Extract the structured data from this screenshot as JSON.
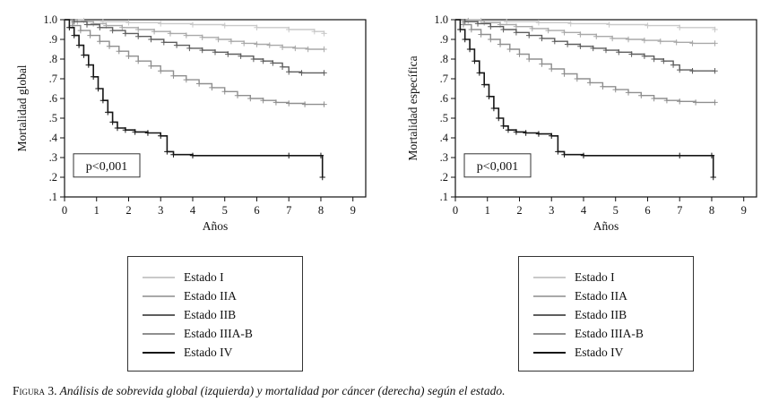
{
  "figure": {
    "caption_label": "Figura 3.",
    "caption_text": " Análisis de sobrevida global (izquierda) y mortalidad por cáncer (derecha) según el estado."
  },
  "legend": {
    "items": [
      {
        "label": "Estado I",
        "color": "#c9c9c9"
      },
      {
        "label": "Estado IIA",
        "color": "#a9a9a9"
      },
      {
        "label": "Estado IIB",
        "color": "#5e5e5e"
      },
      {
        "label": "Estado IIIA-B",
        "color": "#8f8f8f"
      },
      {
        "label": "Estado IV",
        "color": "#161616"
      }
    ]
  },
  "chart_data": [
    {
      "type": "line",
      "subtype": "kaplan-meier-step",
      "ylabel": "Mortalidad global",
      "xlabel": "Años",
      "annotation": "p<0,001",
      "xlim": [
        0,
        9.4
      ],
      "ylim": [
        0.1,
        1.0
      ],
      "xticks": [
        0,
        1,
        2,
        3,
        4,
        5,
        6,
        7,
        8,
        9
      ],
      "ytick_values": [
        1.0,
        0.9,
        0.8,
        0.7,
        0.6,
        0.5,
        0.4,
        0.3,
        0.2,
        0.1
      ],
      "ytick_labels": [
        "1.0",
        ".9",
        ".8",
        ".7",
        ".6",
        ".5",
        ".4",
        ".3",
        ".2",
        ".1"
      ],
      "grid": false,
      "legend_position": "below",
      "series": [
        {
          "name": "Estado I",
          "color": "#c9c9c9",
          "points": [
            [
              0,
              1.0
            ],
            [
              0.6,
              0.995
            ],
            [
              1.2,
              0.99
            ],
            [
              2.0,
              0.985
            ],
            [
              3.0,
              0.98
            ],
            [
              4.0,
              0.975
            ],
            [
              5.0,
              0.97
            ],
            [
              6.0,
              0.96
            ],
            [
              7.0,
              0.95
            ],
            [
              7.8,
              0.94
            ],
            [
              8.1,
              0.93
            ]
          ]
        },
        {
          "name": "Estado IIA",
          "color": "#a9a9a9",
          "points": [
            [
              0,
              1.0
            ],
            [
              0.4,
              0.99
            ],
            [
              0.9,
              0.98
            ],
            [
              1.3,
              0.97
            ],
            [
              1.8,
              0.96
            ],
            [
              2.3,
              0.95
            ],
            [
              2.8,
              0.94
            ],
            [
              3.3,
              0.93
            ],
            [
              3.8,
              0.92
            ],
            [
              4.3,
              0.91
            ],
            [
              4.8,
              0.9
            ],
            [
              5.2,
              0.89
            ],
            [
              5.6,
              0.88
            ],
            [
              6.0,
              0.875
            ],
            [
              6.4,
              0.87
            ],
            [
              6.8,
              0.86
            ],
            [
              7.2,
              0.855
            ],
            [
              7.6,
              0.85
            ],
            [
              8.1,
              0.85
            ]
          ]
        },
        {
          "name": "Estado IIB",
          "color": "#5e5e5e",
          "points": [
            [
              0,
              1.0
            ],
            [
              0.3,
              0.99
            ],
            [
              0.7,
              0.975
            ],
            [
              1.1,
              0.96
            ],
            [
              1.5,
              0.945
            ],
            [
              1.9,
              0.93
            ],
            [
              2.3,
              0.915
            ],
            [
              2.7,
              0.9
            ],
            [
              3.1,
              0.885
            ],
            [
              3.5,
              0.87
            ],
            [
              3.9,
              0.855
            ],
            [
              4.3,
              0.845
            ],
            [
              4.7,
              0.835
            ],
            [
              5.1,
              0.825
            ],
            [
              5.5,
              0.815
            ],
            [
              5.9,
              0.8
            ],
            [
              6.2,
              0.79
            ],
            [
              6.5,
              0.78
            ],
            [
              6.8,
              0.76
            ],
            [
              7.0,
              0.735
            ],
            [
              7.4,
              0.73
            ],
            [
              8.1,
              0.73
            ]
          ]
        },
        {
          "name": "Estado IIIA-B",
          "color": "#8f8f8f",
          "points": [
            [
              0,
              1.0
            ],
            [
              0.25,
              0.97
            ],
            [
              0.5,
              0.945
            ],
            [
              0.8,
              0.92
            ],
            [
              1.1,
              0.89
            ],
            [
              1.4,
              0.865
            ],
            [
              1.7,
              0.84
            ],
            [
              2.0,
              0.815
            ],
            [
              2.3,
              0.79
            ],
            [
              2.7,
              0.765
            ],
            [
              3.0,
              0.74
            ],
            [
              3.4,
              0.715
            ],
            [
              3.8,
              0.695
            ],
            [
              4.2,
              0.675
            ],
            [
              4.6,
              0.655
            ],
            [
              5.0,
              0.635
            ],
            [
              5.4,
              0.615
            ],
            [
              5.8,
              0.6
            ],
            [
              6.2,
              0.59
            ],
            [
              6.6,
              0.58
            ],
            [
              7.0,
              0.575
            ],
            [
              7.5,
              0.57
            ],
            [
              8.1,
              0.57
            ]
          ]
        },
        {
          "name": "Estado IV",
          "color": "#161616",
          "points": [
            [
              0,
              1.0
            ],
            [
              0.15,
              0.96
            ],
            [
              0.3,
              0.92
            ],
            [
              0.45,
              0.87
            ],
            [
              0.6,
              0.82
            ],
            [
              0.75,
              0.77
            ],
            [
              0.9,
              0.71
            ],
            [
              1.05,
              0.65
            ],
            [
              1.2,
              0.59
            ],
            [
              1.35,
              0.53
            ],
            [
              1.5,
              0.48
            ],
            [
              1.65,
              0.45
            ],
            [
              1.9,
              0.44
            ],
            [
              2.2,
              0.43
            ],
            [
              2.6,
              0.425
            ],
            [
              3.0,
              0.41
            ],
            [
              3.2,
              0.33
            ],
            [
              3.4,
              0.315
            ],
            [
              4.0,
              0.31
            ],
            [
              7.0,
              0.31
            ],
            [
              8.0,
              0.31
            ],
            [
              8.05,
              0.2
            ]
          ]
        }
      ]
    },
    {
      "type": "line",
      "subtype": "kaplan-meier-step",
      "ylabel": "Mortalidad específica",
      "xlabel": "Años",
      "annotation": "p<0,001",
      "xlim": [
        0,
        9.4
      ],
      "ylim": [
        0.1,
        1.0
      ],
      "xticks": [
        0,
        1,
        2,
        3,
        4,
        5,
        6,
        7,
        8,
        9
      ],
      "ytick_values": [
        1.0,
        0.9,
        0.8,
        0.7,
        0.6,
        0.5,
        0.4,
        0.3,
        0.2,
        0.1
      ],
      "ytick_labels": [
        "1.0",
        ".9",
        ".8",
        ".7",
        ".6",
        ".5",
        ".4",
        ".3",
        ".2",
        ".1"
      ],
      "grid": false,
      "legend_position": "below",
      "series": [
        {
          "name": "Estado I",
          "color": "#c9c9c9",
          "points": [
            [
              0,
              1.0
            ],
            [
              0.8,
              0.995
            ],
            [
              1.6,
              0.99
            ],
            [
              2.6,
              0.985
            ],
            [
              3.6,
              0.98
            ],
            [
              4.8,
              0.975
            ],
            [
              6.0,
              0.97
            ],
            [
              7.0,
              0.96
            ],
            [
              8.1,
              0.95
            ]
          ]
        },
        {
          "name": "Estado IIA",
          "color": "#a9a9a9",
          "points": [
            [
              0,
              1.0
            ],
            [
              0.4,
              0.995
            ],
            [
              0.9,
              0.985
            ],
            [
              1.4,
              0.975
            ],
            [
              1.9,
              0.965
            ],
            [
              2.4,
              0.955
            ],
            [
              2.9,
              0.945
            ],
            [
              3.4,
              0.935
            ],
            [
              3.9,
              0.925
            ],
            [
              4.4,
              0.915
            ],
            [
              4.9,
              0.905
            ],
            [
              5.4,
              0.9
            ],
            [
              5.9,
              0.895
            ],
            [
              6.4,
              0.89
            ],
            [
              6.9,
              0.885
            ],
            [
              7.4,
              0.88
            ],
            [
              8.1,
              0.88
            ]
          ]
        },
        {
          "name": "Estado IIB",
          "color": "#5e5e5e",
          "points": [
            [
              0,
              1.0
            ],
            [
              0.3,
              0.99
            ],
            [
              0.7,
              0.98
            ],
            [
              1.1,
              0.965
            ],
            [
              1.5,
              0.95
            ],
            [
              1.9,
              0.935
            ],
            [
              2.3,
              0.92
            ],
            [
              2.7,
              0.905
            ],
            [
              3.1,
              0.89
            ],
            [
              3.5,
              0.875
            ],
            [
              3.9,
              0.865
            ],
            [
              4.3,
              0.855
            ],
            [
              4.7,
              0.845
            ],
            [
              5.1,
              0.835
            ],
            [
              5.5,
              0.825
            ],
            [
              5.9,
              0.815
            ],
            [
              6.2,
              0.8
            ],
            [
              6.5,
              0.79
            ],
            [
              6.8,
              0.77
            ],
            [
              7.0,
              0.745
            ],
            [
              7.4,
              0.74
            ],
            [
              8.1,
              0.74
            ]
          ]
        },
        {
          "name": "Estado IIIA-B",
          "color": "#8f8f8f",
          "points": [
            [
              0,
              1.0
            ],
            [
              0.25,
              0.975
            ],
            [
              0.5,
              0.95
            ],
            [
              0.8,
              0.925
            ],
            [
              1.1,
              0.9
            ],
            [
              1.4,
              0.875
            ],
            [
              1.7,
              0.85
            ],
            [
              2.0,
              0.825
            ],
            [
              2.3,
              0.8
            ],
            [
              2.7,
              0.775
            ],
            [
              3.0,
              0.75
            ],
            [
              3.4,
              0.725
            ],
            [
              3.8,
              0.7
            ],
            [
              4.2,
              0.68
            ],
            [
              4.6,
              0.66
            ],
            [
              5.0,
              0.645
            ],
            [
              5.4,
              0.63
            ],
            [
              5.8,
              0.615
            ],
            [
              6.2,
              0.6
            ],
            [
              6.6,
              0.59
            ],
            [
              7.0,
              0.585
            ],
            [
              7.5,
              0.58
            ],
            [
              8.1,
              0.58
            ]
          ]
        },
        {
          "name": "Estado IV",
          "color": "#161616",
          "points": [
            [
              0,
              1.0
            ],
            [
              0.15,
              0.95
            ],
            [
              0.3,
              0.9
            ],
            [
              0.45,
              0.85
            ],
            [
              0.6,
              0.79
            ],
            [
              0.75,
              0.73
            ],
            [
              0.9,
              0.67
            ],
            [
              1.05,
              0.61
            ],
            [
              1.2,
              0.55
            ],
            [
              1.35,
              0.5
            ],
            [
              1.5,
              0.46
            ],
            [
              1.65,
              0.44
            ],
            [
              1.9,
              0.43
            ],
            [
              2.2,
              0.425
            ],
            [
              2.6,
              0.42
            ],
            [
              3.0,
              0.41
            ],
            [
              3.2,
              0.33
            ],
            [
              3.4,
              0.315
            ],
            [
              4.0,
              0.31
            ],
            [
              7.0,
              0.31
            ],
            [
              8.0,
              0.31
            ],
            [
              8.05,
              0.2
            ]
          ]
        }
      ]
    }
  ]
}
